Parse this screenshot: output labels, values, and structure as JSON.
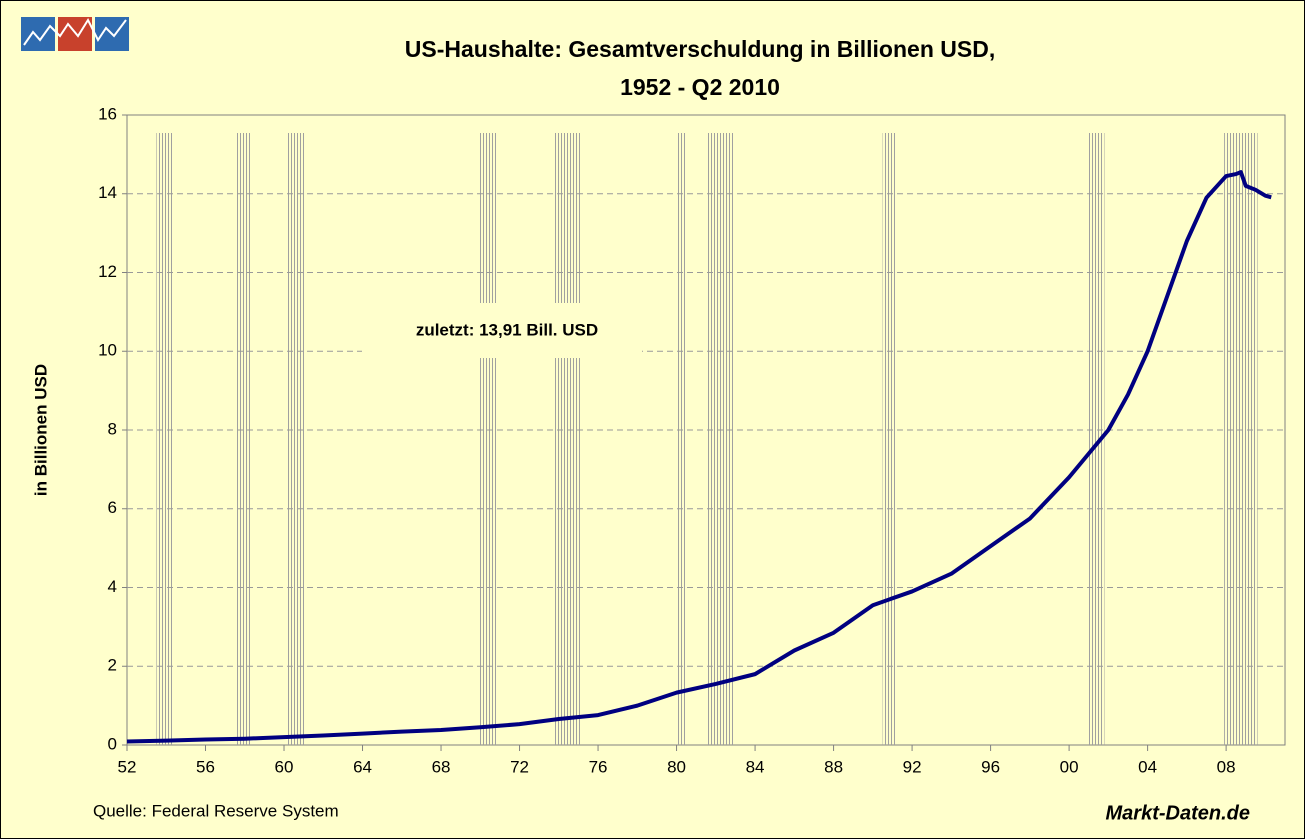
{
  "chart_data": {
    "type": "line",
    "title": [
      "US-Haushalte: Gesamtverschuldung in Billionen USD,",
      "1952 - Q2 2010"
    ],
    "y_label": "in Billionen USD",
    "annotation": "zuletzt: 13,91 Bill. USD",
    "source": "Quelle: Federal Reserve System",
    "brand": "Markt-Daten.de",
    "x": [
      1952,
      1954,
      1956,
      1958,
      1960,
      1962,
      1964,
      1966,
      1968,
      1970,
      1972,
      1974,
      1976,
      1978,
      1980,
      1982,
      1984,
      1986,
      1988,
      1990,
      1992,
      1994,
      1996,
      1998,
      2000,
      2001,
      2002,
      2003,
      2004,
      2005,
      2006,
      2007,
      2008,
      2008.5,
      2008.75,
      2009,
      2009.5,
      2010,
      2010.3
    ],
    "series": [
      {
        "name": "Gesamtverschuldung",
        "color": "#000080",
        "values": [
          0.09,
          0.11,
          0.14,
          0.16,
          0.2,
          0.24,
          0.29,
          0.34,
          0.38,
          0.45,
          0.53,
          0.66,
          0.76,
          1.0,
          1.33,
          1.55,
          1.8,
          2.4,
          2.85,
          3.55,
          3.9,
          4.35,
          5.05,
          5.75,
          6.8,
          7.4,
          8.0,
          8.9,
          10.0,
          11.4,
          12.8,
          13.9,
          14.45,
          14.5,
          14.55,
          14.2,
          14.1,
          13.95,
          13.91
        ]
      }
    ],
    "recessions": [
      [
        1953.5,
        1954.3
      ],
      [
        1957.6,
        1958.3
      ],
      [
        1960.2,
        1961.1
      ],
      [
        1969.9,
        1970.9
      ],
      [
        1973.8,
        1975.1
      ],
      [
        1980.0,
        1980.5
      ],
      [
        1981.5,
        1982.9
      ],
      [
        1990.5,
        1991.2
      ],
      [
        2001.0,
        2001.8
      ],
      [
        2007.9,
        2009.6
      ]
    ],
    "xlim": [
      1952,
      2011
    ],
    "xticks": [
      {
        "value": 1952,
        "label": "52"
      },
      {
        "value": 1956,
        "label": "56"
      },
      {
        "value": 1960,
        "label": "60"
      },
      {
        "value": 1964,
        "label": "64"
      },
      {
        "value": 1968,
        "label": "68"
      },
      {
        "value": 1972,
        "label": "72"
      },
      {
        "value": 1976,
        "label": "76"
      },
      {
        "value": 1980,
        "label": "80"
      },
      {
        "value": 1984,
        "label": "84"
      },
      {
        "value": 1988,
        "label": "88"
      },
      {
        "value": 1992,
        "label": "92"
      },
      {
        "value": 1996,
        "label": "96"
      },
      {
        "value": 2000,
        "label": "00"
      },
      {
        "value": 2004,
        "label": "04"
      },
      {
        "value": 2008,
        "label": "08"
      }
    ],
    "ylim": [
      0,
      16
    ],
    "yticks": [
      0,
      2,
      4,
      6,
      8,
      10,
      12,
      14,
      16
    ],
    "grid": true
  }
}
